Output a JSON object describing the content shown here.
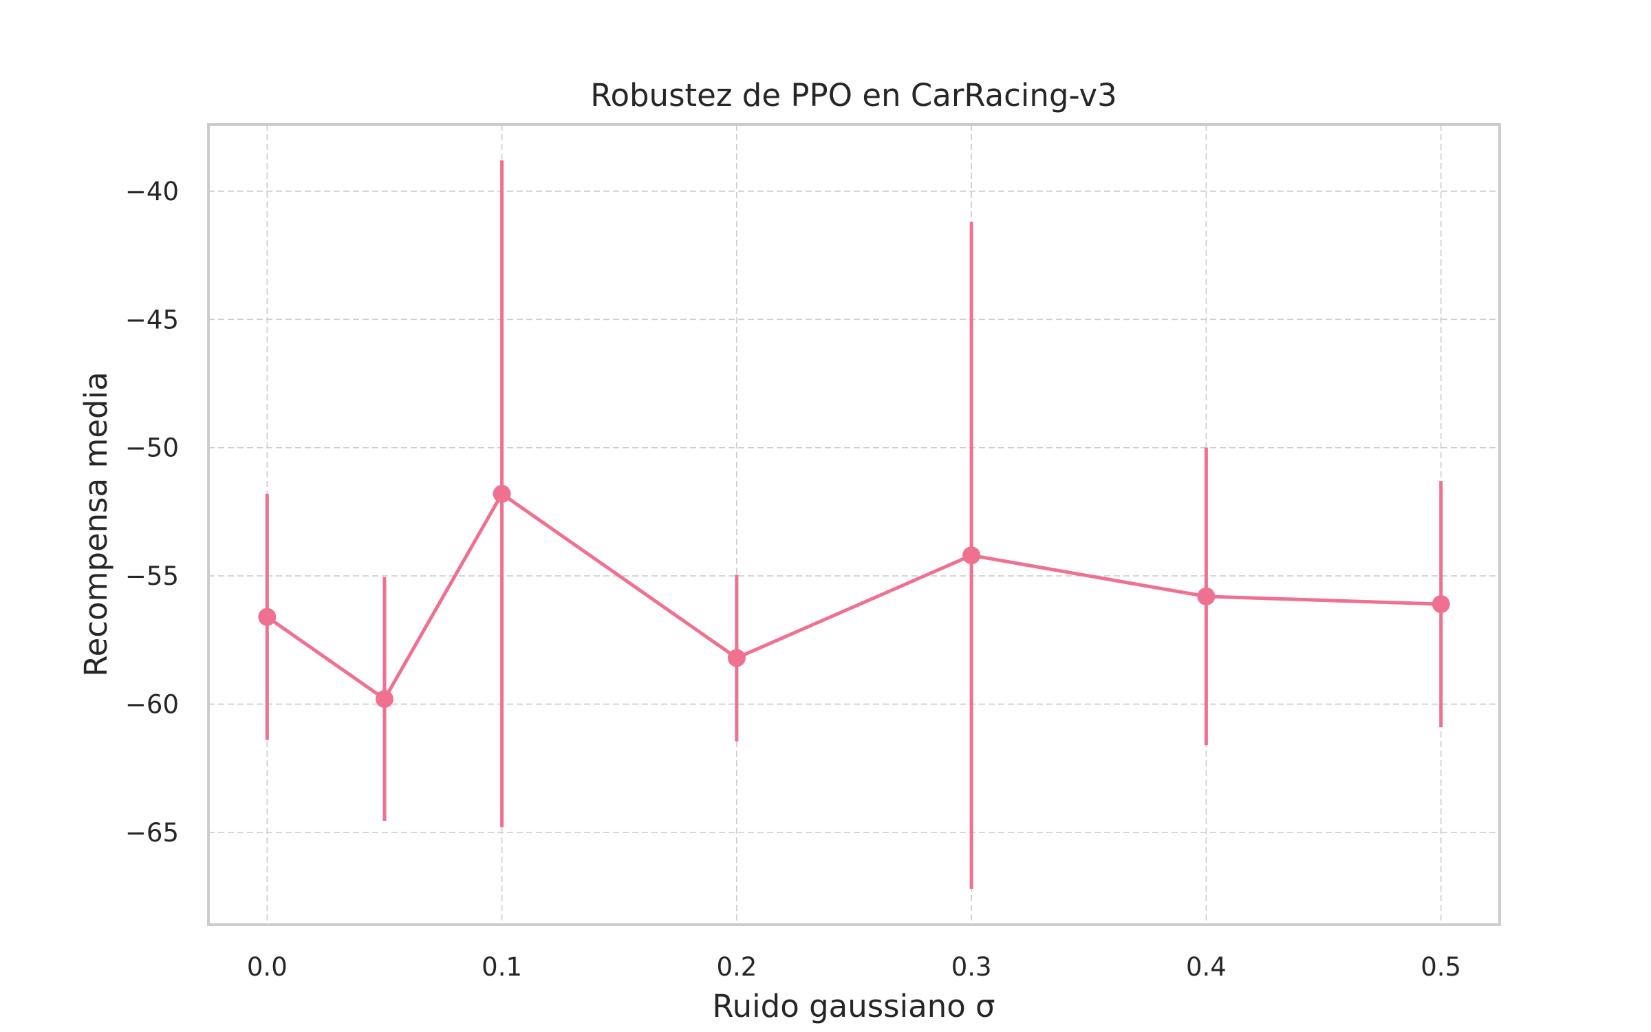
{
  "chart_data": {
    "type": "line",
    "title": "Robustez de PPO en CarRacing-v3",
    "xlabel": "Ruido gaussiano σ",
    "ylabel": "Recompensa media",
    "xlim": [
      -0.025,
      0.525
    ],
    "ylim": [
      -68.6,
      -37.4
    ],
    "xticks": [
      0.0,
      0.1,
      0.2,
      0.3,
      0.4,
      0.5
    ],
    "xtick_labels": [
      "0.0",
      "0.1",
      "0.2",
      "0.3",
      "0.4",
      "0.5"
    ],
    "yticks": [
      -40,
      -45,
      -50,
      -55,
      -60,
      -65
    ],
    "ytick_labels": [
      "−40",
      "−45",
      "−50",
      "−55",
      "−60",
      "−65"
    ],
    "grid": true,
    "color": "#f07090",
    "series": [
      {
        "x": [
          0.0,
          0.05,
          0.1,
          0.2,
          0.3,
          0.4,
          0.5
        ],
        "y": [
          -56.6,
          -59.8,
          -51.8,
          -58.2,
          -54.2,
          -55.8,
          -56.1
        ],
        "yerr": [
          4.8,
          4.75,
          13.0,
          3.25,
          13.0,
          5.8,
          4.8
        ]
      }
    ]
  }
}
